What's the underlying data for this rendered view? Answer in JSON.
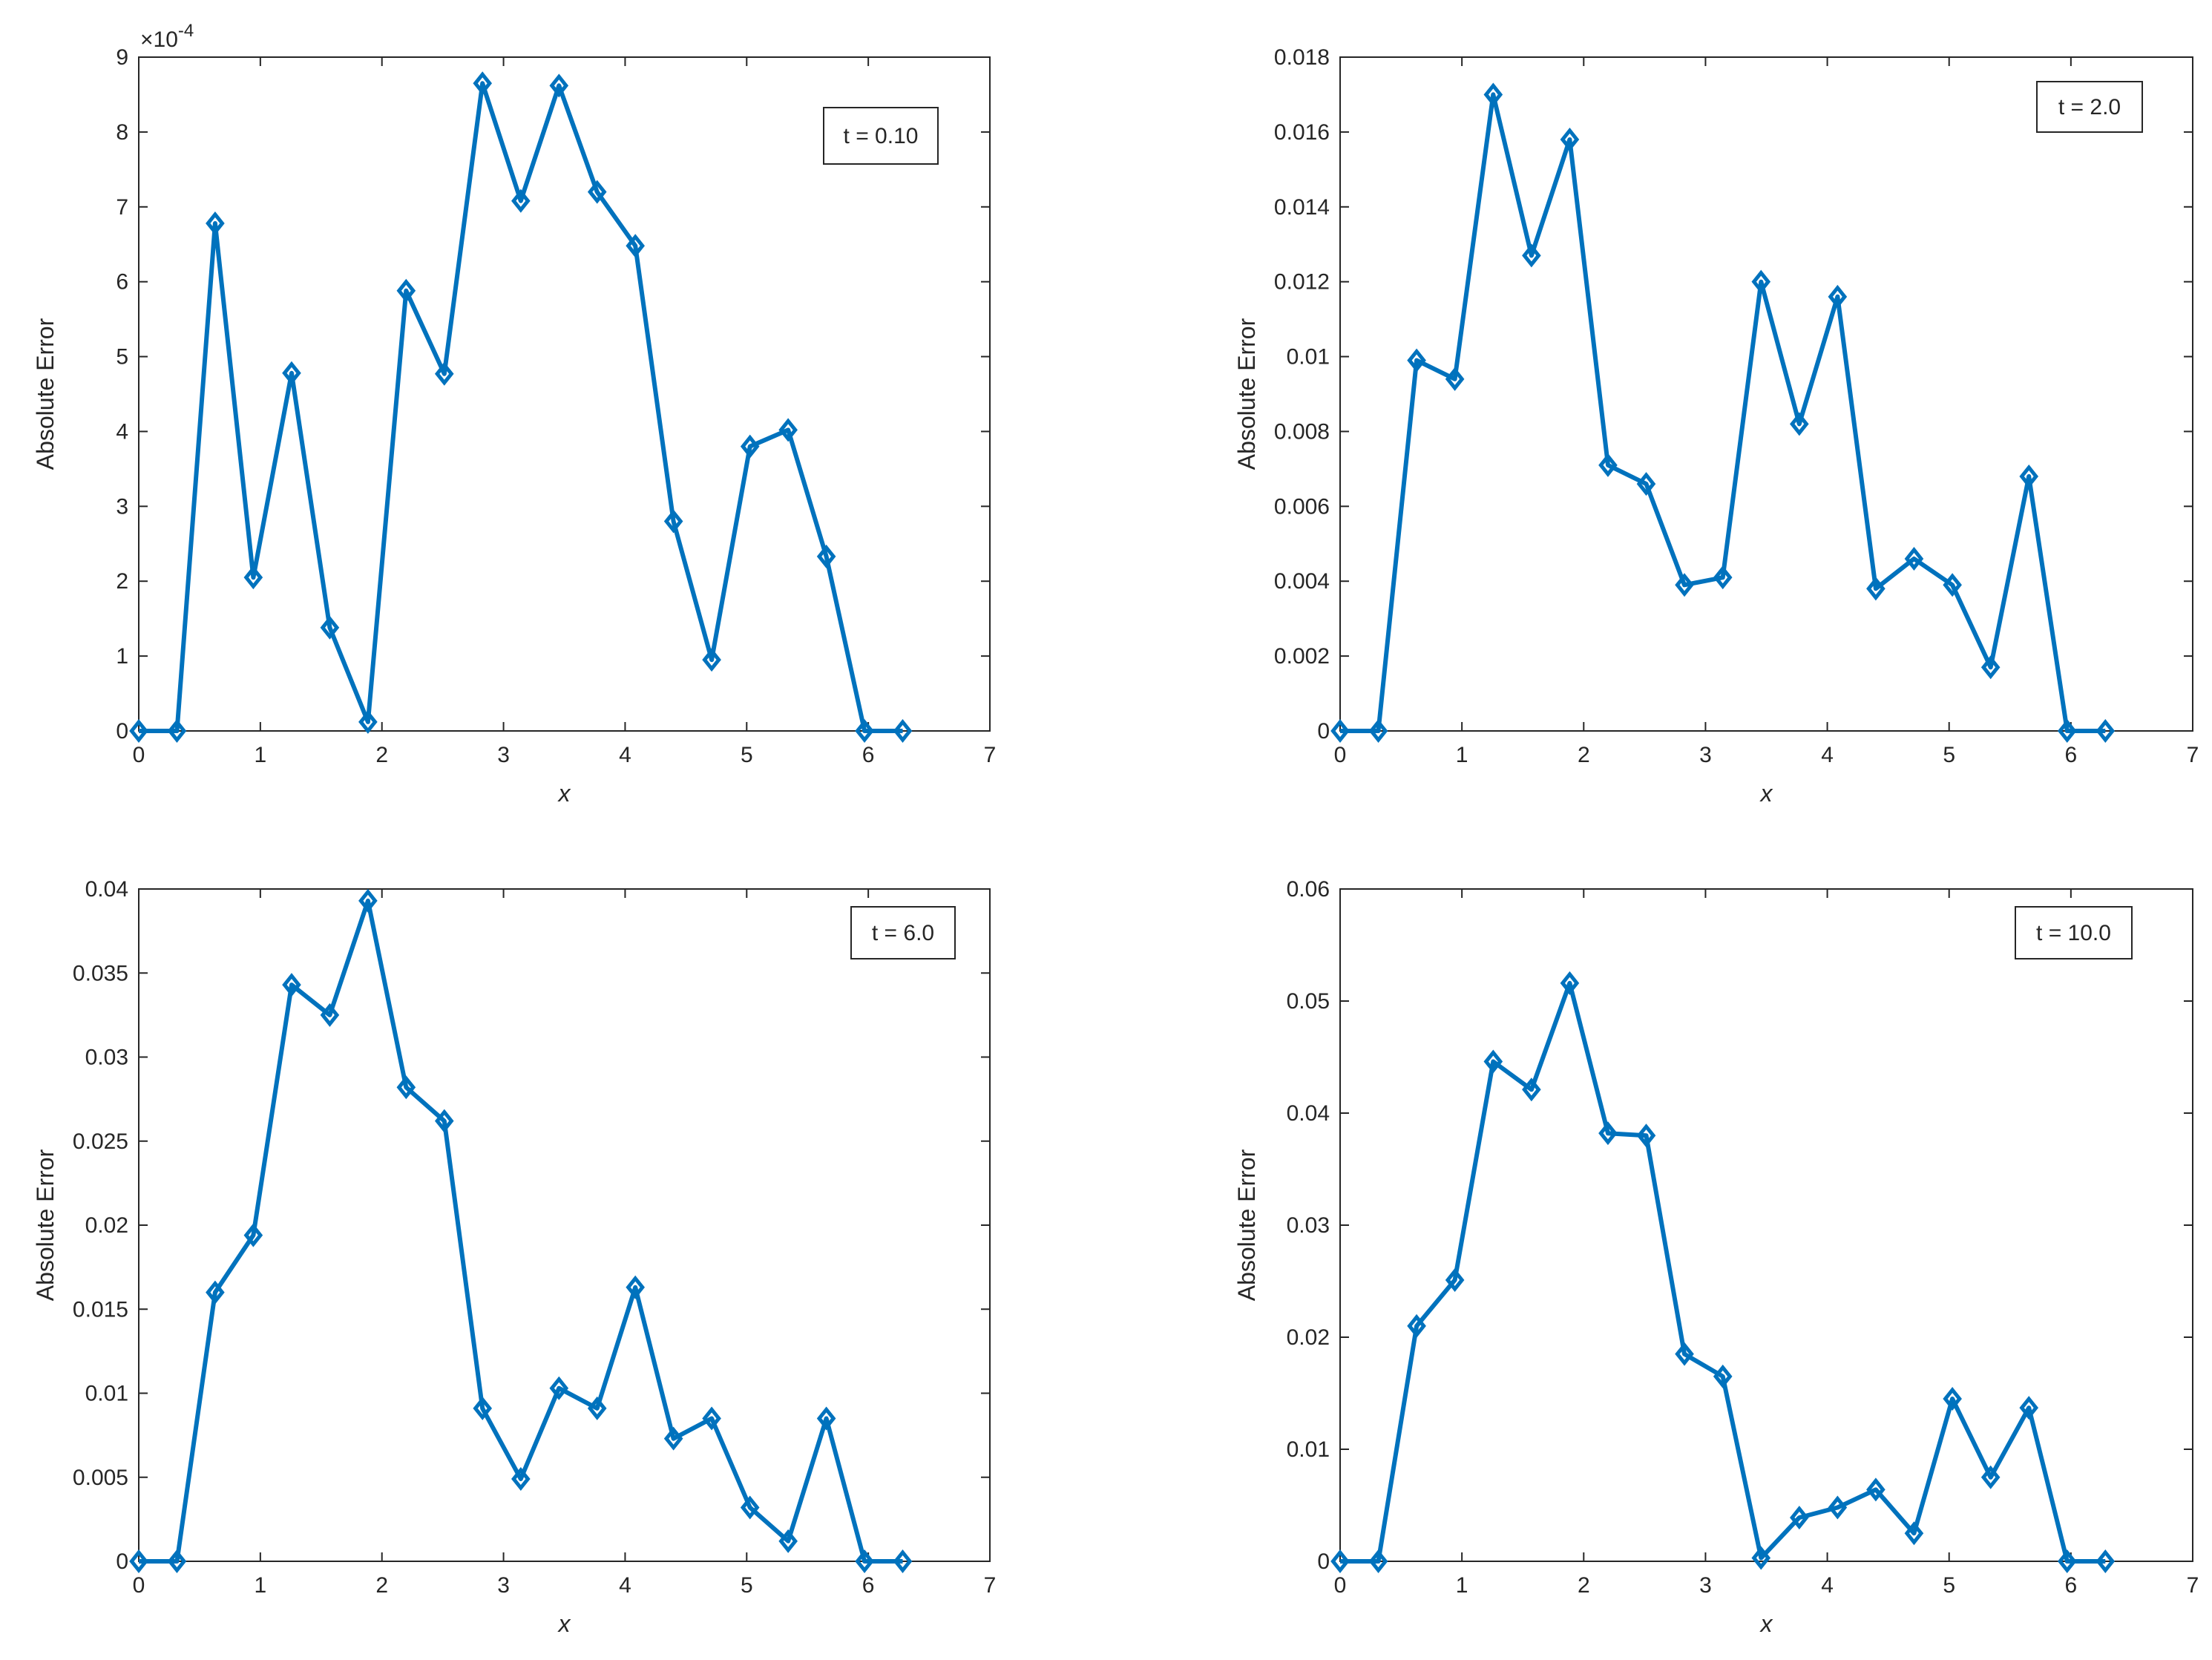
{
  "figure": {
    "series_color": "#0072bd",
    "background": "#ffffff"
  },
  "chart_data": [
    {
      "type": "line",
      "marker": "diamond",
      "xlabel": "x",
      "ylabel": "Absolute Error",
      "annotation": "t = 0.10",
      "exponent_base": "×10",
      "exponent_power": "-4",
      "xlim": [
        0,
        7
      ],
      "ylim": [
        0,
        9
      ],
      "xticks": [
        "0",
        "1",
        "2",
        "3",
        "4",
        "5",
        "6",
        "7"
      ],
      "yticks": [
        "0",
        "1",
        "2",
        "3",
        "4",
        "5",
        "6",
        "7",
        "8",
        "9"
      ],
      "series": [
        {
          "x": [
            0,
            0.314,
            0.628,
            0.942,
            1.257,
            1.571,
            1.885,
            2.199,
            2.513,
            2.827,
            3.142,
            3.456,
            3.77,
            4.084,
            4.398,
            4.712,
            5.027,
            5.341,
            5.655,
            5.969,
            6.283
          ],
          "y": [
            0.0,
            0.0,
            6.78,
            2.05,
            4.78,
            1.38,
            0.12,
            5.88,
            4.77,
            8.65,
            7.08,
            8.62,
            7.2,
            6.48,
            2.8,
            0.95,
            3.8,
            4.02,
            2.33,
            0.0,
            0.0
          ]
        }
      ]
    },
    {
      "type": "line",
      "marker": "diamond",
      "xlabel": "x",
      "ylabel": "Absolute Error",
      "annotation": "t = 2.0",
      "xlim": [
        0,
        7
      ],
      "ylim": [
        0,
        0.018
      ],
      "xticks": [
        "0",
        "1",
        "2",
        "3",
        "4",
        "5",
        "6",
        "7"
      ],
      "yticks": [
        "0",
        "0.002",
        "0.004",
        "0.006",
        "0.008",
        "0.01",
        "0.012",
        "0.014",
        "0.016",
        "0.018"
      ],
      "series": [
        {
          "x": [
            0,
            0.314,
            0.628,
            0.942,
            1.257,
            1.571,
            1.885,
            2.199,
            2.513,
            2.827,
            3.142,
            3.456,
            3.77,
            4.084,
            4.398,
            4.712,
            5.027,
            5.341,
            5.655,
            5.969,
            6.283
          ],
          "y": [
            0.0,
            0.0,
            0.0099,
            0.0094,
            0.017,
            0.0127,
            0.0158,
            0.0071,
            0.0066,
            0.0039,
            0.0041,
            0.012,
            0.0082,
            0.0116,
            0.0038,
            0.0046,
            0.0039,
            0.0017,
            0.0068,
            0.0,
            0.0
          ]
        }
      ]
    },
    {
      "type": "line",
      "marker": "diamond",
      "xlabel": "x",
      "ylabel": "Absolute Error",
      "annotation": "t = 6.0",
      "xlim": [
        0,
        7
      ],
      "ylim": [
        0,
        0.04
      ],
      "xticks": [
        "0",
        "1",
        "2",
        "3",
        "4",
        "5",
        "6",
        "7"
      ],
      "yticks": [
        "0",
        "0.005",
        "0.01",
        "0.015",
        "0.02",
        "0.025",
        "0.03",
        "0.035",
        "0.04"
      ],
      "series": [
        {
          "x": [
            0,
            0.314,
            0.628,
            0.942,
            1.257,
            1.571,
            1.885,
            2.199,
            2.513,
            2.827,
            3.142,
            3.456,
            3.77,
            4.084,
            4.398,
            4.712,
            5.027,
            5.341,
            5.655,
            5.969,
            6.283
          ],
          "y": [
            0.0,
            0.0,
            0.016,
            0.0194,
            0.0343,
            0.0325,
            0.0393,
            0.0282,
            0.0262,
            0.0091,
            0.0049,
            0.0103,
            0.0091,
            0.0163,
            0.0073,
            0.0085,
            0.0032,
            0.0012,
            0.0085,
            0.0,
            0.0
          ]
        }
      ]
    },
    {
      "type": "line",
      "marker": "diamond",
      "xlabel": "x",
      "ylabel": "Absolute Error",
      "annotation": "t = 10.0",
      "xlim": [
        0,
        7
      ],
      "ylim": [
        0,
        0.06
      ],
      "xticks": [
        "0",
        "1",
        "2",
        "3",
        "4",
        "5",
        "6",
        "7"
      ],
      "yticks": [
        "0",
        "0.01",
        "0.02",
        "0.03",
        "0.04",
        "0.05",
        "0.06"
      ],
      "series": [
        {
          "x": [
            0,
            0.314,
            0.628,
            0.942,
            1.257,
            1.571,
            1.885,
            2.199,
            2.513,
            2.827,
            3.142,
            3.456,
            3.77,
            4.084,
            4.398,
            4.712,
            5.027,
            5.341,
            5.655,
            5.969,
            6.283
          ],
          "y": [
            0.0,
            0.0,
            0.021,
            0.0251,
            0.0446,
            0.0421,
            0.0516,
            0.0382,
            0.038,
            0.0185,
            0.0165,
            0.0003,
            0.0039,
            0.0048,
            0.0064,
            0.0025,
            0.0145,
            0.0075,
            0.0137,
            0.0,
            0.0
          ]
        }
      ]
    }
  ]
}
